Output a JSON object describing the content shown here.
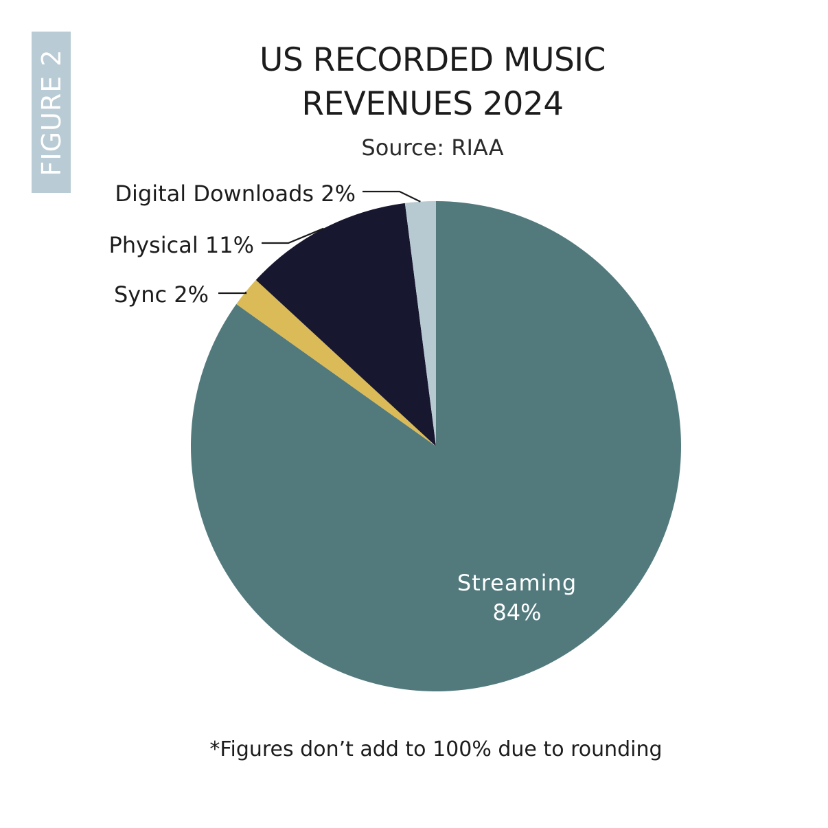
{
  "figure_tab": "FIGURE 2",
  "title_line1": "US RECORDED MUSIC",
  "title_line2": "REVENUES 2024",
  "subtitle": "Source: RIAA",
  "footnote": "*Figures don’t add to 100% due to rounding",
  "colors": {
    "tab": "#b9cbd4",
    "streaming": "#527a7d",
    "physical": "#181730",
    "sync": "#dbbb57",
    "digital_downloads": "#b7c9d1"
  },
  "chart_data": {
    "type": "pie",
    "title": "US RECORDED MUSIC REVENUES 2024",
    "subtitle": "Source: RIAA",
    "slices": [
      {
        "name": "Streaming",
        "label": "Streaming",
        "value_label": "84%",
        "value": 84,
        "color": "#527a7d"
      },
      {
        "name": "Sync",
        "label": "Sync 2%",
        "value": 2,
        "color": "#dbbb57"
      },
      {
        "name": "Physical",
        "label": "Physical 11%",
        "value": 11,
        "color": "#181730"
      },
      {
        "name": "Digital Downloads",
        "label": "Digital Downloads 2%",
        "value": 2,
        "color": "#b7c9d1"
      }
    ]
  }
}
